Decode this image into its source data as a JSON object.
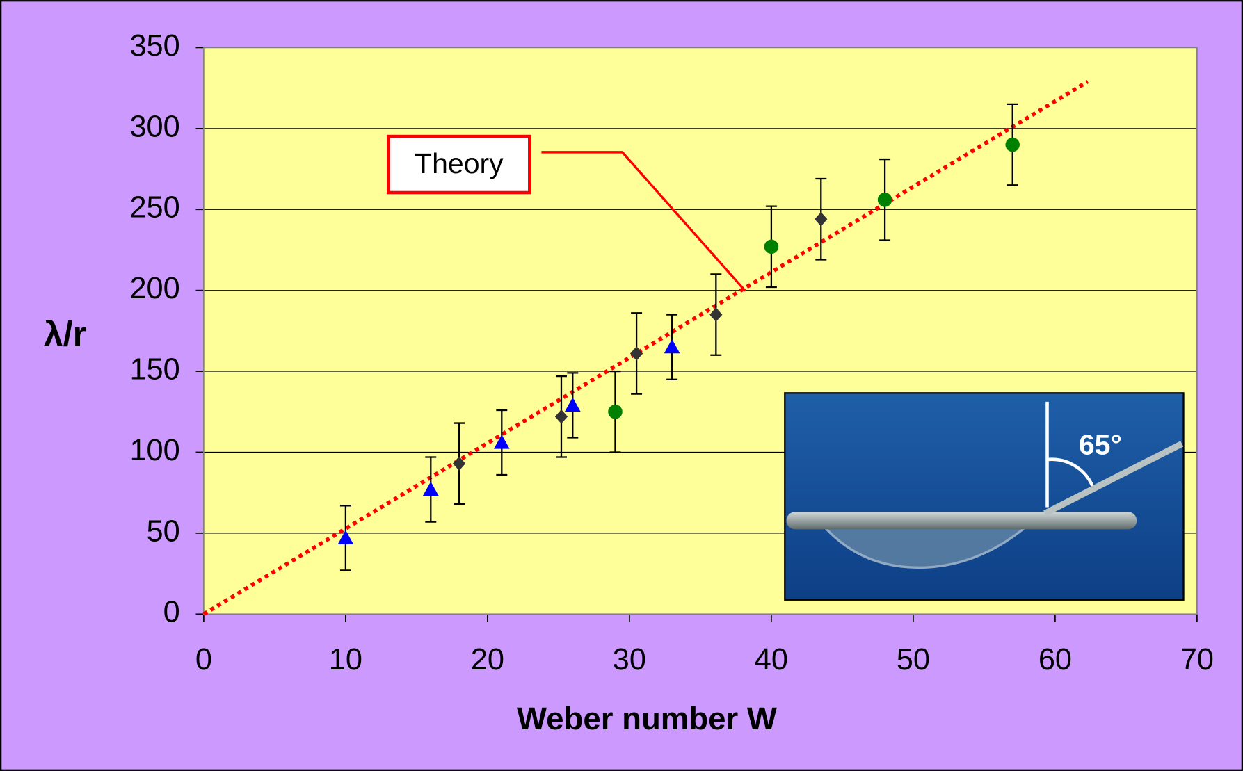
{
  "chart_data": {
    "type": "scatter",
    "x_label": "Weber number W",
    "y_label": "λ/r",
    "xlim": [
      0,
      70
    ],
    "xticks": [
      0,
      10,
      20,
      30,
      40,
      50,
      60,
      70
    ],
    "ylim": [
      0,
      350
    ],
    "yticks": [
      0,
      50,
      100,
      150,
      200,
      250,
      300,
      350
    ],
    "grid": true,
    "series": [
      {
        "marker": "triangle",
        "color": "#0000ff",
        "x": [
          10,
          16,
          21,
          26,
          33
        ],
        "values": [
          47,
          77,
          106,
          129,
          165
        ],
        "errors": [
          20,
          20,
          20,
          20,
          20
        ]
      },
      {
        "marker": "diamond",
        "color": "#333333",
        "x": [
          18,
          25.2,
          30.5,
          36.1,
          43.5
        ],
        "values": [
          93,
          122,
          161,
          185,
          244
        ],
        "errors": [
          25,
          25,
          25,
          25,
          25
        ]
      },
      {
        "marker": "circle",
        "color": "#008000",
        "x": [
          29,
          40,
          48,
          57
        ],
        "values": [
          125,
          227,
          256,
          290
        ],
        "errors": [
          25,
          25,
          25,
          25
        ]
      }
    ],
    "theory_line": {
      "x": [
        0,
        62.3
      ],
      "values": [
        0,
        329
      ],
      "color": "#ff0000",
      "style": "dotted"
    },
    "annotation": "Theory",
    "inset_label": "65°"
  }
}
